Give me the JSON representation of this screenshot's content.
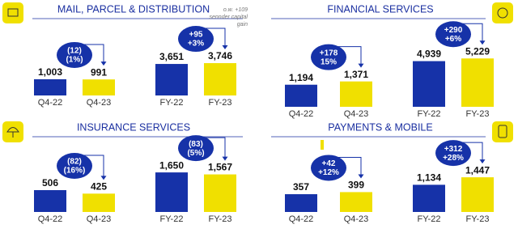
{
  "chart_data": [
    {
      "type": "bar",
      "title": "MAIL, PARCEL & DISTRIBUTION",
      "categories": [
        "Q4-22",
        "Q4-23"
      ],
      "values": [
        1003,
        991
      ],
      "value_labels": [
        "1,003",
        "991"
      ],
      "colors": [
        "#1632a8",
        "#f0e000"
      ],
      "ylim": [
        0,
        4000
      ],
      "annotations": [
        "(12)",
        "(1%)"
      ]
    },
    {
      "type": "bar",
      "categories": [
        "FY-22",
        "FY-23"
      ],
      "values": [
        3651,
        3746
      ],
      "value_labels": [
        "3,651",
        "3,746"
      ],
      "colors": [
        "#1632a8",
        "#f0e000"
      ],
      "ylim": [
        0,
        7500
      ],
      "annotations": [
        "+95",
        "+3%"
      ],
      "footnote": [
        "o.w. +109",
        "sennder capital",
        "gain"
      ]
    },
    {
      "type": "bar",
      "title": "FINANCIAL SERVICES",
      "categories": [
        "Q4-22",
        "Q4-23"
      ],
      "values": [
        1194,
        1371
      ],
      "value_labels": [
        "1,194",
        "1,371"
      ],
      "colors": [
        "#1632a8",
        "#f0e000"
      ],
      "ylim": [
        0,
        3500
      ],
      "annotations": [
        "+178",
        "15%"
      ]
    },
    {
      "type": "bar",
      "categories": [
        "FY-22",
        "FY-23"
      ],
      "values": [
        4939,
        5229
      ],
      "value_labels": [
        "4,939",
        "5,229"
      ],
      "colors": [
        "#1632a8",
        "#f0e000"
      ],
      "ylim": [
        0,
        7000
      ],
      "annotations": [
        "+290",
        "+6%"
      ]
    },
    {
      "type": "bar",
      "title": "INSURANCE SERVICES",
      "categories": [
        "Q4-22",
        "Q4-23"
      ],
      "values": [
        506,
        425
      ],
      "value_labels": [
        "506",
        "425"
      ],
      "colors": [
        "#1632a8",
        "#f0e000"
      ],
      "ylim": [
        0,
        1500
      ],
      "annotations": [
        "(82)",
        "(16%)"
      ]
    },
    {
      "type": "bar",
      "categories": [
        "FY-22",
        "FY-23"
      ],
      "values": [
        1650,
        1567
      ],
      "value_labels": [
        "1,650",
        "1,567"
      ],
      "colors": [
        "#1632a8",
        "#f0e000"
      ],
      "ylim": [
        0,
        2700
      ],
      "annotations": [
        "(83)",
        "(5%)"
      ]
    },
    {
      "type": "bar",
      "title": "PAYMENTS & MOBILE",
      "categories": [
        "Q4-22",
        "Q4-23"
      ],
      "values": [
        357,
        399
      ],
      "value_labels": [
        "357",
        "399"
      ],
      "colors": [
        "#1632a8",
        "#f0e000"
      ],
      "ylim": [
        0,
        1300
      ],
      "annotations": [
        "+42",
        "+12%"
      ]
    },
    {
      "type": "bar",
      "categories": [
        "FY-22",
        "FY-23"
      ],
      "values": [
        1134,
        1447
      ],
      "value_labels": [
        "1,134",
        "1,447"
      ],
      "colors": [
        "#1632a8",
        "#f0e000"
      ],
      "ylim": [
        0,
        2700
      ],
      "annotations": [
        "+312",
        "+28%"
      ]
    }
  ]
}
